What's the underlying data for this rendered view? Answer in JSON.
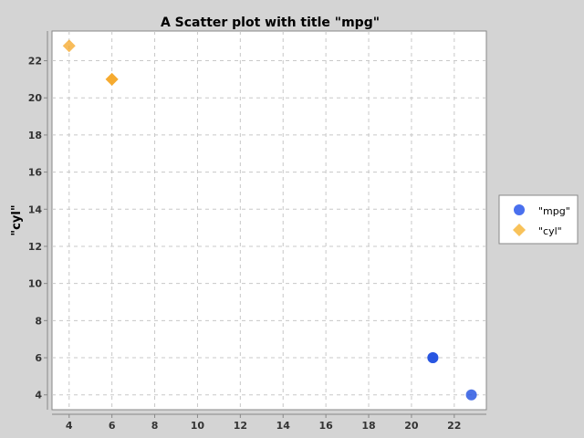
{
  "chart_data": {
    "type": "scatter",
    "title": "A Scatter plot with title \"mpg\"",
    "xlabel": "",
    "ylabel": "\"cyl\"",
    "xlim": [
      3.2,
      23.5
    ],
    "ylim": [
      3.2,
      23.6
    ],
    "x_ticks": [
      4,
      6,
      8,
      10,
      12,
      14,
      16,
      18,
      20,
      22
    ],
    "y_ticks": [
      4,
      6,
      8,
      10,
      12,
      14,
      16,
      18,
      20,
      22
    ],
    "grid": true,
    "legend_position": "right",
    "series": [
      {
        "name": "\"mpg\"",
        "marker": "circle",
        "color": "#1f4fe0",
        "points": [
          {
            "x": 21.0,
            "y": 6
          },
          {
            "x": 21.0,
            "y": 6
          },
          {
            "x": 22.8,
            "y": 4
          }
        ]
      },
      {
        "name": "\"cyl\"",
        "marker": "diamond",
        "color": "#f5a623",
        "points": [
          {
            "x": 6,
            "y": 21.0
          },
          {
            "x": 6,
            "y": 21.0
          },
          {
            "x": 4,
            "y": 22.8
          }
        ]
      }
    ]
  }
}
